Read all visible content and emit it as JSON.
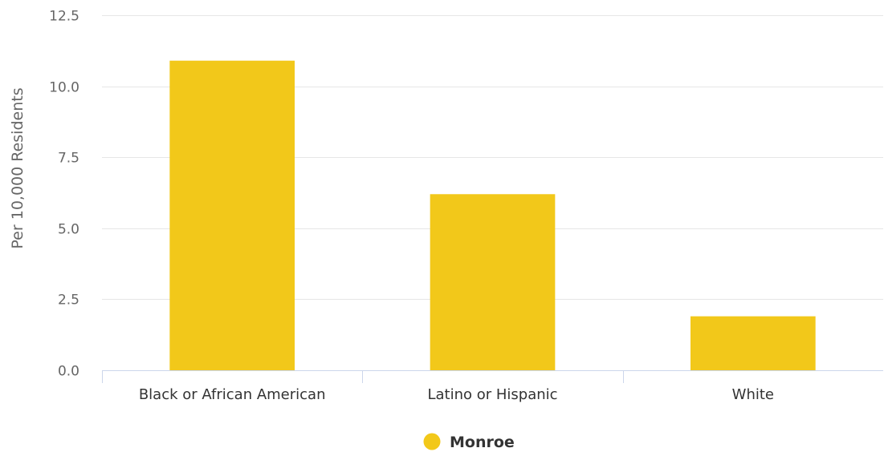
{
  "chart_data": {
    "type": "bar",
    "title": "",
    "xlabel": "",
    "ylabel": "Per 10,000 Residents",
    "categories": [
      "Black or African American",
      "Latino or Hispanic",
      "White"
    ],
    "series": [
      {
        "name": "Monroe",
        "values": [
          10.9,
          6.2,
          1.9
        ],
        "color": "#f2c81a"
      }
    ],
    "ylim": [
      0,
      12.5
    ],
    "yticks": [
      "0.0",
      "2.5",
      "5.0",
      "7.5",
      "10.0",
      "12.5"
    ],
    "grid": true,
    "legend_position": "bottom-center"
  }
}
